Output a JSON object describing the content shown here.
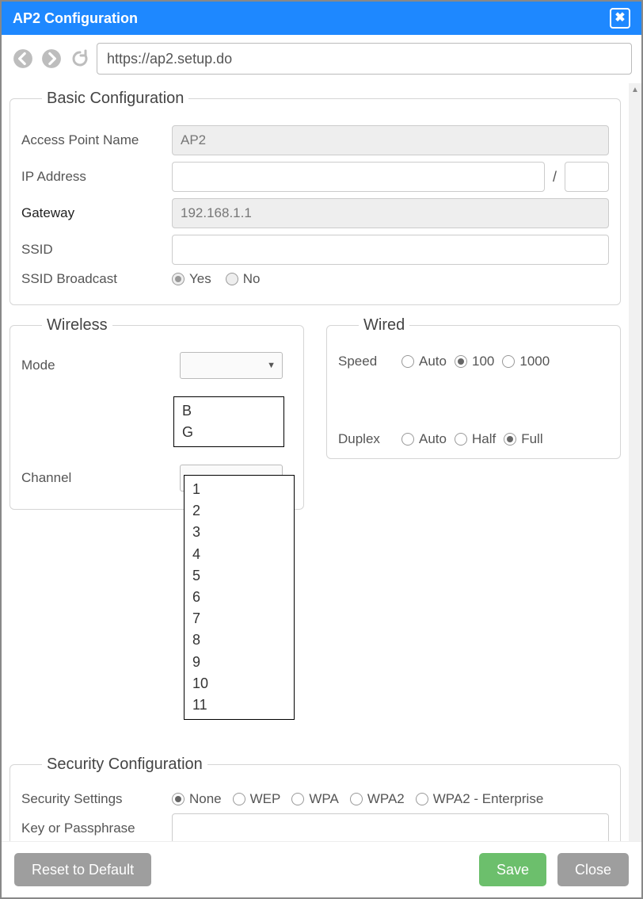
{
  "window": {
    "title": "AP2 Configuration"
  },
  "toolbar": {
    "url": "https://ap2.setup.do"
  },
  "basic": {
    "legend": "Basic Configuration",
    "ap_name_label": "Access Point Name",
    "ap_name_value": "AP2",
    "ip_label": "IP Address",
    "ip_sep": "/",
    "gateway_label": "Gateway",
    "gateway_value": "192.168.1.1",
    "ssid_label": "SSID",
    "broadcast_label": "SSID Broadcast",
    "broadcast_yes": "Yes",
    "broadcast_no": "No",
    "broadcast_selected": "yes",
    "broadcast_disabled": true
  },
  "wireless": {
    "legend": "Wireless",
    "mode_label": "Mode",
    "mode_options": [
      "B",
      "G"
    ],
    "channel_label": "Channel",
    "channel_options": [
      "1",
      "2",
      "3",
      "4",
      "5",
      "6",
      "7",
      "8",
      "9",
      "10",
      "11"
    ]
  },
  "wired": {
    "legend": "Wired",
    "speed_label": "Speed",
    "speed_options": [
      "Auto",
      "100",
      "1000"
    ],
    "speed_selected": "100",
    "duplex_label": "Duplex",
    "duplex_options": [
      "Auto",
      "Half",
      "Full"
    ],
    "duplex_selected": "Full"
  },
  "security": {
    "legend": "Security Configuration",
    "settings_label": "Security Settings",
    "options": [
      "None",
      "WEP",
      "WPA",
      "WPA2",
      "WPA2 - Enterprise"
    ],
    "selected": "None",
    "key_label": "Key or Passphrase"
  },
  "footer": {
    "reset": "Reset to Default",
    "save": "Save",
    "close": "Close"
  },
  "colors": {
    "titlebar": "#1e88ff",
    "save_btn": "#6cbf6c",
    "gray_btn": "#9e9e9e",
    "border": "#d5d5d5"
  }
}
